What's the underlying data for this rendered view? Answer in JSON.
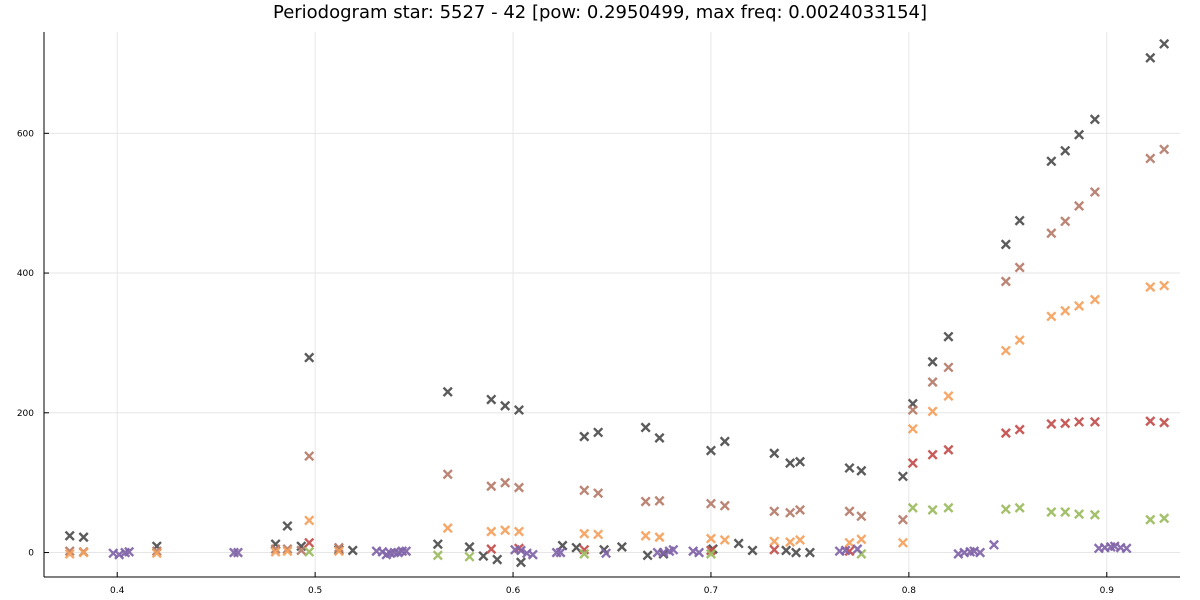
{
  "chart_data": {
    "type": "scatter",
    "title": "Periodogram star: 5527 - 42 [pow: 0.2950499, max freq: 0.0024033154]",
    "xlabel": "",
    "ylabel": "",
    "xlim": [
      0.363,
      0.937
    ],
    "ylim": [
      -35,
      745
    ],
    "xticks": [
      0.4,
      0.5,
      0.6,
      0.7,
      0.8,
      0.9
    ],
    "xtick_labels": [
      "0.4",
      "0.5",
      "0.6",
      "0.7",
      "0.8",
      "0.9"
    ],
    "yticks": [
      0,
      200,
      400,
      600
    ],
    "ytick_labels": [
      "0",
      "200",
      "400",
      "600"
    ],
    "grid": true,
    "legend": "none",
    "marker": "x",
    "series": [
      {
        "color": "#4d4d4d",
        "points": [
          [
            0.376,
            24
          ],
          [
            0.383,
            22
          ],
          [
            0.42,
            9
          ],
          [
            0.48,
            12
          ],
          [
            0.486,
            38
          ],
          [
            0.493,
            9
          ],
          [
            0.497,
            279
          ],
          [
            0.512,
            4
          ],
          [
            0.519,
            3
          ],
          [
            0.562,
            12
          ],
          [
            0.567,
            230
          ],
          [
            0.578,
            8
          ],
          [
            0.585,
            -5
          ],
          [
            0.589,
            219
          ],
          [
            0.592,
            -10
          ],
          [
            0.596,
            210
          ],
          [
            0.603,
            204
          ],
          [
            0.604,
            -14
          ],
          [
            0.625,
            10
          ],
          [
            0.632,
            7
          ],
          [
            0.636,
            166
          ],
          [
            0.643,
            172
          ],
          [
            0.646,
            4
          ],
          [
            0.655,
            8
          ],
          [
            0.667,
            179
          ],
          [
            0.668,
            -4
          ],
          [
            0.674,
            164
          ],
          [
            0.676,
            -2
          ],
          [
            0.7,
            146
          ],
          [
            0.701,
            5
          ],
          [
            0.707,
            159
          ],
          [
            0.714,
            13
          ],
          [
            0.721,
            3
          ],
          [
            0.732,
            142
          ],
          [
            0.738,
            3
          ],
          [
            0.74,
            128
          ],
          [
            0.743,
            0
          ],
          [
            0.745,
            130
          ],
          [
            0.75,
            0
          ],
          [
            0.77,
            121
          ],
          [
            0.776,
            117
          ],
          [
            0.797,
            109
          ],
          [
            0.802,
            213
          ],
          [
            0.812,
            273
          ],
          [
            0.82,
            309
          ],
          [
            0.849,
            441
          ],
          [
            0.856,
            475
          ],
          [
            0.872,
            560
          ],
          [
            0.879,
            575
          ],
          [
            0.886,
            598
          ],
          [
            0.894,
            620
          ],
          [
            0.922,
            708
          ],
          [
            0.929,
            728
          ]
        ]
      },
      {
        "color": "#b57c6a",
        "points": [
          [
            0.376,
            2
          ],
          [
            0.383,
            1
          ],
          [
            0.42,
            2
          ],
          [
            0.48,
            5
          ],
          [
            0.486,
            5
          ],
          [
            0.493,
            3
          ],
          [
            0.497,
            138
          ],
          [
            0.512,
            7
          ],
          [
            0.567,
            112
          ],
          [
            0.589,
            95
          ],
          [
            0.596,
            100
          ],
          [
            0.603,
            93
          ],
          [
            0.636,
            89
          ],
          [
            0.643,
            85
          ],
          [
            0.667,
            73
          ],
          [
            0.674,
            74
          ],
          [
            0.7,
            70
          ],
          [
            0.707,
            67
          ],
          [
            0.732,
            59
          ],
          [
            0.74,
            57
          ],
          [
            0.745,
            61
          ],
          [
            0.77,
            59
          ],
          [
            0.776,
            52
          ],
          [
            0.797,
            47
          ],
          [
            0.802,
            204
          ],
          [
            0.812,
            244
          ],
          [
            0.82,
            265
          ],
          [
            0.849,
            388
          ],
          [
            0.856,
            408
          ],
          [
            0.872,
            457
          ],
          [
            0.879,
            474
          ],
          [
            0.886,
            496
          ],
          [
            0.894,
            516
          ],
          [
            0.922,
            564
          ],
          [
            0.929,
            577
          ]
        ]
      },
      {
        "color": "#f4a15c",
        "points": [
          [
            0.376,
            -2
          ],
          [
            0.383,
            0
          ],
          [
            0.42,
            -1
          ],
          [
            0.48,
            1
          ],
          [
            0.486,
            2
          ],
          [
            0.497,
            46
          ],
          [
            0.512,
            2
          ],
          [
            0.567,
            35
          ],
          [
            0.589,
            30
          ],
          [
            0.596,
            32
          ],
          [
            0.603,
            30
          ],
          [
            0.636,
            27
          ],
          [
            0.643,
            26
          ],
          [
            0.667,
            24
          ],
          [
            0.674,
            22
          ],
          [
            0.7,
            20
          ],
          [
            0.707,
            18
          ],
          [
            0.732,
            16
          ],
          [
            0.74,
            15
          ],
          [
            0.745,
            18
          ],
          [
            0.77,
            14
          ],
          [
            0.776,
            19
          ],
          [
            0.797,
            14
          ],
          [
            0.802,
            177
          ],
          [
            0.812,
            202
          ],
          [
            0.82,
            224
          ],
          [
            0.849,
            289
          ],
          [
            0.856,
            304
          ],
          [
            0.872,
            338
          ],
          [
            0.879,
            346
          ],
          [
            0.886,
            353
          ],
          [
            0.894,
            362
          ],
          [
            0.922,
            380
          ],
          [
            0.929,
            382
          ]
        ]
      },
      {
        "color": "#c24e4c",
        "points": [
          [
            0.497,
            14
          ],
          [
            0.589,
            5
          ],
          [
            0.603,
            6
          ],
          [
            0.636,
            4
          ],
          [
            0.7,
            3
          ],
          [
            0.732,
            4
          ],
          [
            0.77,
            2
          ],
          [
            0.802,
            128
          ],
          [
            0.812,
            140
          ],
          [
            0.82,
            147
          ],
          [
            0.849,
            171
          ],
          [
            0.856,
            176
          ],
          [
            0.872,
            184
          ],
          [
            0.879,
            185
          ],
          [
            0.886,
            187
          ],
          [
            0.894,
            187
          ],
          [
            0.922,
            188
          ],
          [
            0.929,
            186
          ]
        ]
      },
      {
        "color": "#9bbb5e",
        "points": [
          [
            0.497,
            1
          ],
          [
            0.562,
            -4
          ],
          [
            0.578,
            -6
          ],
          [
            0.636,
            -2
          ],
          [
            0.7,
            -2
          ],
          [
            0.776,
            -2
          ],
          [
            0.802,
            64
          ],
          [
            0.812,
            61
          ],
          [
            0.82,
            64
          ],
          [
            0.849,
            62
          ],
          [
            0.856,
            64
          ],
          [
            0.872,
            58
          ],
          [
            0.879,
            58
          ],
          [
            0.886,
            55
          ],
          [
            0.894,
            54
          ],
          [
            0.922,
            47
          ],
          [
            0.929,
            49
          ]
        ]
      },
      {
        "color": "#8064a8",
        "points": [
          [
            0.398,
            -1
          ],
          [
            0.401,
            -3
          ],
          [
            0.404,
            0
          ],
          [
            0.406,
            1
          ],
          [
            0.459,
            0
          ],
          [
            0.461,
            0
          ],
          [
            0.531,
            2
          ],
          [
            0.534,
            1
          ],
          [
            0.536,
            -3
          ],
          [
            0.538,
            -1
          ],
          [
            0.54,
            0
          ],
          [
            0.542,
            0
          ],
          [
            0.544,
            2
          ],
          [
            0.546,
            2
          ],
          [
            0.601,
            4
          ],
          [
            0.604,
            3
          ],
          [
            0.607,
            -1
          ],
          [
            0.61,
            -3
          ],
          [
            0.622,
            0
          ],
          [
            0.624,
            0
          ],
          [
            0.647,
            -1
          ],
          [
            0.673,
            0
          ],
          [
            0.676,
            0
          ],
          [
            0.679,
            2
          ],
          [
            0.681,
            4
          ],
          [
            0.691,
            2
          ],
          [
            0.694,
            0
          ],
          [
            0.765,
            2
          ],
          [
            0.768,
            3
          ],
          [
            0.774,
            5
          ],
          [
            0.825,
            -2
          ],
          [
            0.828,
            0
          ],
          [
            0.831,
            1
          ],
          [
            0.833,
            2
          ],
          [
            0.836,
            0
          ],
          [
            0.843,
            11
          ],
          [
            0.896,
            6
          ],
          [
            0.899,
            7
          ],
          [
            0.902,
            8
          ],
          [
            0.904,
            9
          ],
          [
            0.907,
            7
          ],
          [
            0.91,
            6
          ]
        ]
      }
    ]
  }
}
